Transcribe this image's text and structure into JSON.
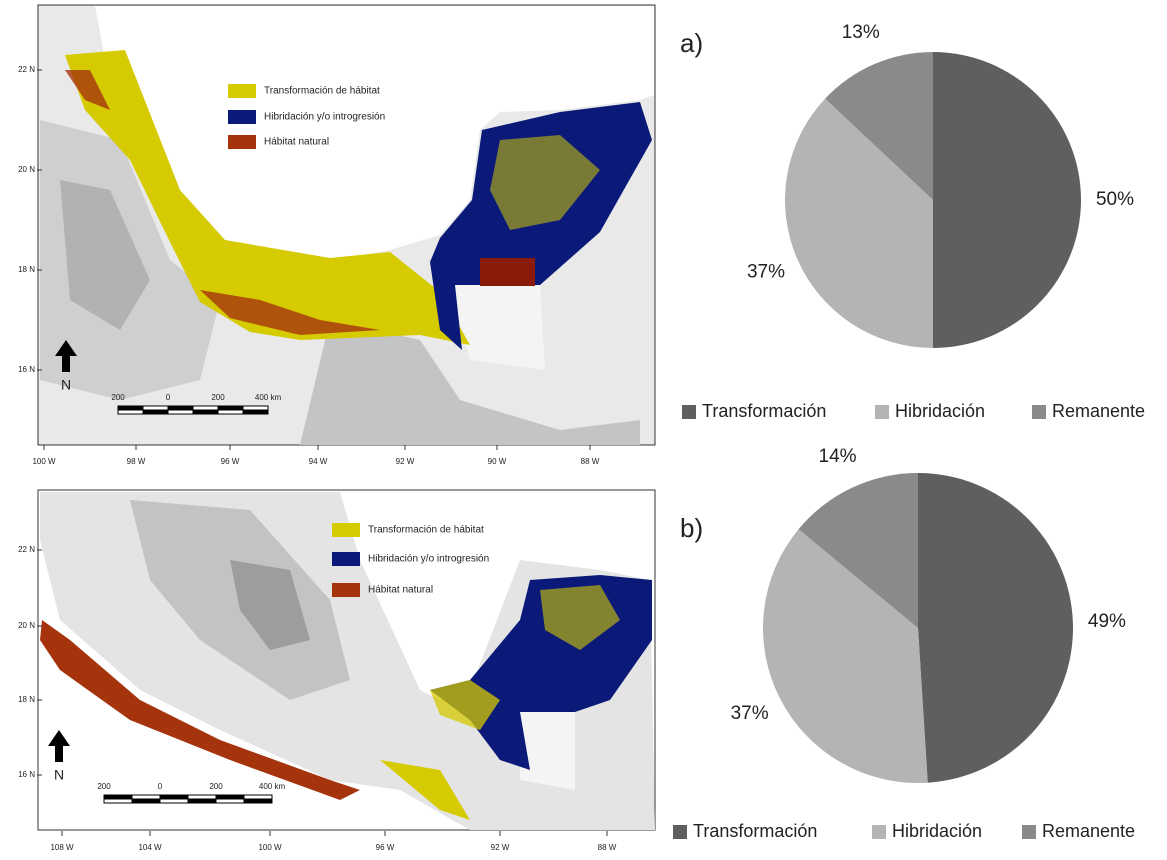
{
  "chart_data": [
    {
      "type": "pie",
      "panel_label": "a)",
      "categories": [
        "Transformación",
        "Hibridación",
        "Remanente"
      ],
      "values": [
        50,
        37,
        13
      ],
      "value_labels": [
        "50%",
        "37%",
        "13%"
      ],
      "colors": [
        "#5f5f5f",
        "#b4b4b4",
        "#8a8a8a"
      ]
    },
    {
      "type": "pie",
      "panel_label": "b)",
      "categories": [
        "Transformación",
        "Hibridación",
        "Remanente"
      ],
      "values": [
        49,
        37,
        14
      ],
      "value_labels": [
        "49%",
        "37%",
        "14%"
      ],
      "colors": [
        "#5f5f5f",
        "#b4b4b4",
        "#8a8a8a"
      ]
    }
  ],
  "maps": [
    {
      "legend": [
        {
          "label": "Transformación de hábitat",
          "color": "#d6ca00"
        },
        {
          "label": "Hibridación y/o introgresión",
          "color": "#0b1a78"
        },
        {
          "label": "Hábitat natural",
          "color": "#a5330c"
        }
      ],
      "x_labels": [
        "100 W",
        "98 W",
        "96 W",
        "94 W",
        "92 W",
        "90 W",
        "88 W"
      ],
      "y_labels": [
        "22 N",
        "20 N",
        "18 N",
        "16 N"
      ],
      "scale_labels": [
        "200",
        "0",
        "200",
        "400 km"
      ],
      "north": "N"
    },
    {
      "legend": [
        {
          "label": "Transformación de hábitat",
          "color": "#d6ca00"
        },
        {
          "label": "Hibridación y/o introgresión",
          "color": "#0b1a78"
        },
        {
          "label": "Hábitat natural",
          "color": "#a5330c"
        }
      ],
      "x_labels": [
        "108 W",
        "104 W",
        "100 W",
        "96 W",
        "92 W",
        "88 W"
      ],
      "y_labels": [
        "22 N",
        "20 N",
        "18 N",
        "16 N"
      ],
      "scale_labels": [
        "200",
        "0",
        "200",
        "400 km"
      ],
      "north": "N"
    }
  ]
}
